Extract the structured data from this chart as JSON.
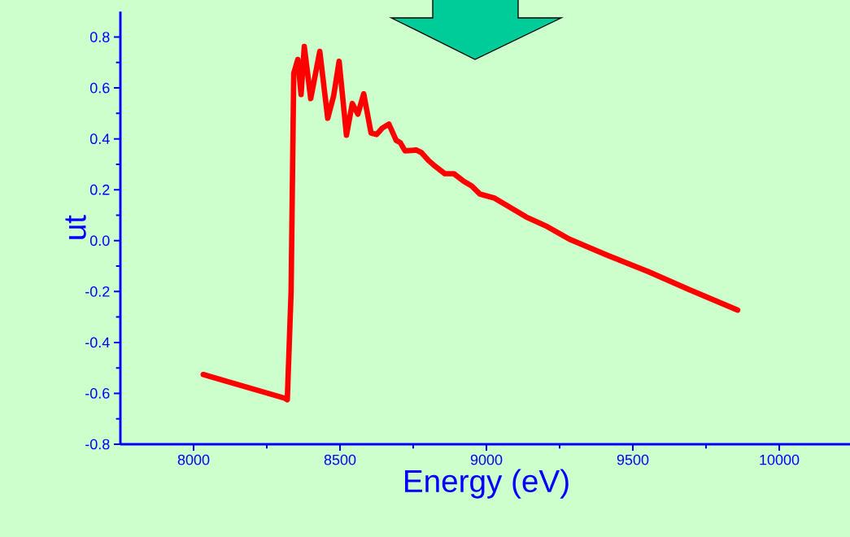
{
  "chart_data": {
    "type": "line",
    "xlabel": "Energy (eV)",
    "ylabel": "ut",
    "series": [
      {
        "color": "#ff0000",
        "x": [
          8033,
          8311,
          8320,
          8333,
          8342,
          8356,
          8367,
          8378,
          8400,
          8431,
          8458,
          8478,
          8497,
          8522,
          8542,
          8561,
          8581,
          8606,
          8625,
          8644,
          8667,
          8692,
          8706,
          8722,
          8761,
          8778,
          8803,
          8819,
          8858,
          8889,
          8922,
          8950,
          8978,
          9028,
          9136,
          9208,
          9283,
          9414,
          9553,
          9692,
          9858
        ],
        "values": [
          -0.526,
          -0.619,
          -0.625,
          -0.2,
          0.657,
          0.712,
          0.574,
          0.763,
          0.558,
          0.744,
          0.481,
          0.567,
          0.705,
          0.414,
          0.539,
          0.497,
          0.577,
          0.423,
          0.417,
          0.442,
          0.458,
          0.394,
          0.385,
          0.353,
          0.356,
          0.346,
          0.314,
          0.298,
          0.263,
          0.263,
          0.234,
          0.215,
          0.183,
          0.167,
          0.093,
          0.055,
          0.006,
          -0.058,
          -0.122,
          -0.192,
          -0.273
        ]
      }
    ],
    "xlim": [
      7750,
      10250
    ],
    "ylim": [
      -0.8,
      0.9
    ],
    "xticks": [
      8000,
      8500,
      9000,
      9500,
      10000
    ],
    "yticks": [
      -0.8,
      -0.6,
      -0.4,
      -0.2,
      {
        "value": 0,
        "label": "0.0"
      },
      0.2,
      0.4,
      0.6,
      0.8
    ],
    "marker": "none",
    "line_style": "solid"
  }
}
